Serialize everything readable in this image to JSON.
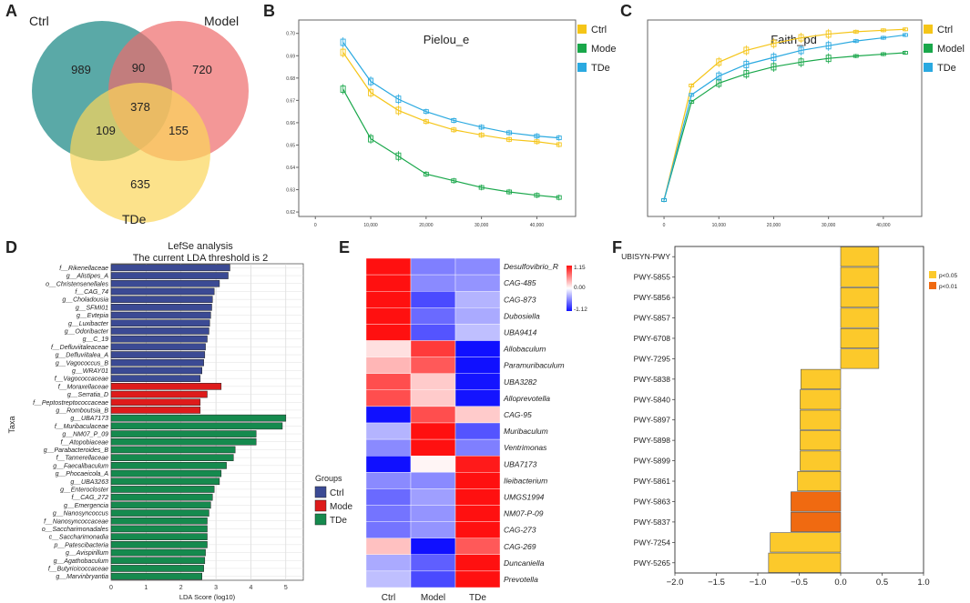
{
  "panel_labels": {
    "a": "A",
    "b": "B",
    "c": "C",
    "d": "D",
    "e": "E",
    "f": "F"
  },
  "colors": {
    "ctrl": "#f5c518",
    "model": "#19a74a",
    "tde": "#2aa9e0",
    "venn_ctrl": "#3d9a98",
    "venn_model": "#ee6b6b",
    "venn_tde": "#fbd65a",
    "lefse_ctrl": "#3b4a94",
    "lefse_model": "#de1b1b",
    "lefse_tde": "#158a4e",
    "pathway_p005": "#fcc92b",
    "pathway_p001": "#f06a11"
  },
  "chart_data": [
    {
      "id": "venn",
      "type": "venn",
      "sets": [
        "Ctrl",
        "Model",
        "TDe"
      ],
      "regions": {
        "ctrl_only": "989",
        "model_only": "720",
        "tde_only": "635",
        "ctrl_model": "90",
        "ctrl_tde": "109",
        "model_tde": "155",
        "all": "378"
      }
    },
    {
      "id": "pielou",
      "type": "line",
      "title": "Pielou_e",
      "x": [
        5000,
        10000,
        15000,
        20000,
        25000,
        30000,
        35000,
        40000,
        44000
      ],
      "xticks": [
        0,
        10000,
        20000,
        30000,
        40000
      ],
      "xtick_labels": [
        "0",
        "10,000",
        "20,000",
        "30,000",
        "40,000"
      ],
      "xlim": [
        -3000,
        47000
      ],
      "ylim": [
        0.618,
        0.706
      ],
      "yticks": [
        0.62,
        0.63,
        0.64,
        0.65,
        0.66,
        0.67,
        0.68,
        0.69,
        0.7
      ],
      "ytick_labels": [
        "0.62",
        "0.63",
        "0.64",
        "0.65",
        "0.66",
        "0.67",
        "0.68",
        "0.69",
        "0.70"
      ],
      "legend": [
        "Ctrl",
        "Mode",
        "TDe"
      ],
      "series": [
        {
          "name": "Ctrl",
          "values": [
            0.6915,
            0.6735,
            0.6655,
            0.6605,
            0.6568,
            0.6545,
            0.6525,
            0.6515,
            0.6502
          ]
        },
        {
          "name": "Mode",
          "values": [
            0.675,
            0.6528,
            0.645,
            0.637,
            0.634,
            0.631,
            0.629,
            0.6275,
            0.6265
          ]
        },
        {
          "name": "TDe",
          "values": [
            0.696,
            0.6785,
            0.6705,
            0.665,
            0.661,
            0.658,
            0.6555,
            0.654,
            0.6532
          ]
        }
      ]
    },
    {
      "id": "faith",
      "type": "line",
      "title": "Faith_pd",
      "x": [
        0,
        5000,
        10000,
        15000,
        20000,
        25000,
        30000,
        35000,
        40000,
        44000
      ],
      "xticks": [
        0,
        10000,
        20000,
        30000,
        40000
      ],
      "xtick_labels": [
        "0",
        "10,000",
        "20,000",
        "30,000",
        "40,000"
      ],
      "xlim": [
        -3000,
        47000
      ],
      "ylim": [
        0,
        42
      ],
      "legend": [
        "Ctrl",
        "Model",
        "TDe"
      ],
      "series": [
        {
          "name": "Ctrl",
          "values": [
            3.5,
            28,
            33,
            35.5,
            37,
            38.2,
            39,
            39.5,
            39.8,
            40
          ]
        },
        {
          "name": "Model",
          "values": [
            3.5,
            24.5,
            28.5,
            30.5,
            32,
            33,
            33.8,
            34.3,
            34.7,
            35
          ]
        },
        {
          "name": "TDe",
          "values": [
            3.5,
            26,
            30,
            32.5,
            34,
            35.5,
            36.5,
            37.5,
            38.2,
            38.8
          ]
        }
      ]
    },
    {
      "id": "lefse",
      "type": "bar",
      "orientation": "horizontal",
      "title": "LefSe analysis",
      "subtitle": "The current LDA threshold is 2",
      "xlabel": "LDA Score (log10)",
      "ylabel": "Taxa",
      "xlim": [
        0,
        5.5
      ],
      "xticks": [
        0,
        1,
        2,
        3,
        4,
        5
      ],
      "xtick_labels": [
        "0",
        "1",
        "2",
        "3",
        "4",
        "5"
      ],
      "legend_title": "Groups",
      "legend": [
        "Ctrl",
        "Mode",
        "TDe"
      ],
      "categories": [
        "f__Rikenellaceae",
        "g__Alistipes_A",
        "o__Christensenellales",
        "f__CAG_74",
        "g__Choladousia",
        "g__SFMI01",
        "g__Evtepia",
        "g__Luxibacter",
        "g__Odoribacter",
        "g__C_19",
        "f__Defluviitaleaceae",
        "g__Defluviitalea_A",
        "g__Vagococcus_B",
        "g__WRAY01",
        "f__Vagococcaceae",
        "f__Moraxellaceae",
        "g__Serratia_D",
        "f__Peptostreptococcaceae",
        "g__Romboutsia_B",
        "g__UBA7173",
        "f__Muribaculaceae",
        "g__NM07_P_09",
        "f__Atopobiaceae",
        "g__Parabacteroides_B",
        "f__Tannerellaceae",
        "g__Faecalibaculum",
        "g__Phocaeicola_A",
        "g__UBA3263",
        "g__Enterocloster",
        "f__CAG_272",
        "g__Emergencia",
        "g__Nanosyncoccus",
        "f__Nanosyncoccaceae",
        "o__Saccharimonadales",
        "c__Saccharimonadia",
        "p__Patescibacteria",
        "g__Avispirillum",
        "g__Agathobaculum",
        "f__Butyricicoccaceae",
        "g__Marvinbryantia"
      ],
      "values": [
        3.4,
        3.35,
        3.1,
        2.95,
        2.9,
        2.88,
        2.85,
        2.82,
        2.8,
        2.75,
        2.7,
        2.68,
        2.65,
        2.6,
        2.55,
        3.15,
        2.75,
        2.55,
        2.55,
        5.0,
        4.9,
        4.15,
        4.15,
        3.55,
        3.5,
        3.3,
        3.15,
        3.1,
        2.95,
        2.9,
        2.85,
        2.8,
        2.75,
        2.75,
        2.75,
        2.75,
        2.7,
        2.68,
        2.65,
        2.6
      ],
      "groups": [
        "Ctrl",
        "Ctrl",
        "Ctrl",
        "Ctrl",
        "Ctrl",
        "Ctrl",
        "Ctrl",
        "Ctrl",
        "Ctrl",
        "Ctrl",
        "Ctrl",
        "Ctrl",
        "Ctrl",
        "Ctrl",
        "Ctrl",
        "Mode",
        "Mode",
        "Mode",
        "Mode",
        "TDe",
        "TDe",
        "TDe",
        "TDe",
        "TDe",
        "TDe",
        "TDe",
        "TDe",
        "TDe",
        "TDe",
        "TDe",
        "TDe",
        "TDe",
        "TDe",
        "TDe",
        "TDe",
        "TDe",
        "TDe",
        "TDe",
        "TDe",
        "TDe"
      ]
    },
    {
      "id": "heatmap",
      "type": "heatmap",
      "columns": [
        "Ctrl",
        "Model",
        "TDe"
      ],
      "rows": [
        "Desulfovibrio_R",
        "CAG-485",
        "CAG-873",
        "Dubosiella",
        "UBA9414",
        "Allobaculum",
        "Paramuribaculum",
        "UBA3282",
        "Alloprevotella",
        "CAG-95",
        "Muribaculum",
        "Ventrimonas",
        "UBA7173",
        "Ileibacterium",
        "UMGS1994",
        "NM07-P-09",
        "CAG-273",
        "CAG-269",
        "Duncaniella",
        "Prevotella"
      ],
      "values": [
        [
          1.15,
          -0.6,
          -0.55
        ],
        [
          1.15,
          -0.55,
          -0.5
        ],
        [
          1.15,
          -0.85,
          -0.35
        ],
        [
          1.15,
          -0.7,
          -0.4
        ],
        [
          1.15,
          -0.8,
          -0.3
        ],
        [
          0.15,
          0.95,
          -1.12
        ],
        [
          0.35,
          0.8,
          -1.12
        ],
        [
          0.85,
          0.25,
          -1.1
        ],
        [
          0.85,
          0.25,
          -1.1
        ],
        [
          -1.12,
          0.85,
          0.25
        ],
        [
          -0.35,
          1.15,
          -0.8
        ],
        [
          -0.55,
          1.15,
          -0.6
        ],
        [
          -1.12,
          0.05,
          1.1
        ],
        [
          -0.55,
          -0.55,
          1.15
        ],
        [
          -0.7,
          -0.45,
          1.15
        ],
        [
          -0.65,
          -0.5,
          1.15
        ],
        [
          -0.65,
          -0.5,
          1.15
        ],
        [
          0.3,
          -1.12,
          0.8
        ],
        [
          -0.4,
          -0.75,
          1.15
        ],
        [
          -0.3,
          -0.85,
          1.15
        ]
      ],
      "color_scale": {
        "min": -1.12,
        "mid": 0.0,
        "max": 1.15
      },
      "colorbar_ticks": [
        "1.15",
        "0.00",
        "-1.12"
      ]
    },
    {
      "id": "pathways",
      "type": "bar",
      "orientation": "horizontal",
      "categories": [
        "UBISYN-PWY",
        "PWY-5855",
        "PWY-5856",
        "PWY-5857",
        "PWY-6708",
        "PWY-7295",
        "PWY-5838",
        "PWY-5840",
        "PWY-5897",
        "PWY-5898",
        "PWY-5899",
        "PWY-5861",
        "PWY-5863",
        "PWY-5837",
        "PWY-7254",
        "PWY-5265"
      ],
      "values": [
        0.46,
        0.46,
        0.46,
        0.46,
        0.46,
        0.46,
        -0.48,
        -0.49,
        -0.49,
        -0.49,
        -0.49,
        -0.52,
        -0.6,
        -0.6,
        -0.85,
        -0.87
      ],
      "significance": [
        "p<0.05",
        "p<0.05",
        "p<0.05",
        "p<0.05",
        "p<0.05",
        "p<0.05",
        "p<0.05",
        "p<0.05",
        "p<0.05",
        "p<0.05",
        "p<0.05",
        "p<0.05",
        "p<0.01",
        "p<0.01",
        "p<0.05",
        "p<0.05"
      ],
      "xlim": [
        -2.0,
        1.0
      ],
      "xticks": [
        -2.0,
        -1.5,
        -1.0,
        -0.5,
        0.0,
        0.5,
        1.0
      ],
      "xtick_labels": [
        "−2.0",
        "−1.5",
        "−1.0",
        "−0.5",
        "0.0",
        "0.5",
        "1.0"
      ],
      "legend": [
        "p<0.05",
        "p<0.01"
      ]
    }
  ]
}
